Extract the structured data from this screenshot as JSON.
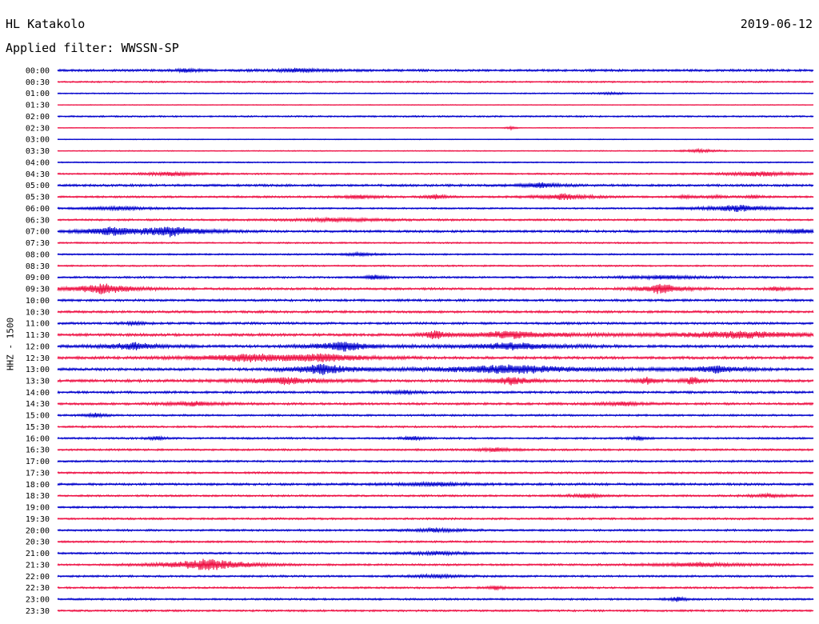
{
  "header": {
    "station": "HL Katakolo",
    "date": "2019-06-12",
    "filter": "Applied filter: WWSSN-SP"
  },
  "chart_data": {
    "type": "line",
    "title": "HL Katakolo",
    "subtitle": "Applied filter: WWSSN-SP",
    "ylabel": "HHZ - 1500",
    "xlabel": "",
    "colors": [
      "#0000cc",
      "#ee1144"
    ],
    "categories": [
      "00:00",
      "00:30",
      "01:00",
      "01:30",
      "02:00",
      "02:30",
      "03:00",
      "03:30",
      "04:00",
      "04:30",
      "05:00",
      "05:30",
      "06:00",
      "06:30",
      "07:00",
      "07:30",
      "08:00",
      "08:30",
      "09:00",
      "09:30",
      "10:00",
      "10:30",
      "11:00",
      "11:30",
      "12:00",
      "12:30",
      "13:00",
      "13:30",
      "14:00",
      "14:30",
      "15:00",
      "15:30",
      "16:00",
      "16:30",
      "17:00",
      "17:30",
      "18:00",
      "18:30",
      "19:00",
      "19:30",
      "20:00",
      "20:30",
      "21:00",
      "21:30",
      "22:00",
      "22:30",
      "23:00",
      "23:30"
    ],
    "noise": [
      3,
      2,
      1.5,
      1,
      2,
      1,
      1,
      1.2,
      1.5,
      2,
      3,
      2.5,
      2,
      2.5,
      3,
      2,
      2,
      2,
      2.5,
      3,
      3,
      3,
      3,
      3.5,
      3.5,
      3.5,
      3.5,
      3.5,
      3,
      3,
      2.5,
      2.5,
      2.5,
      2.5,
      2.5,
      2.5,
      3,
      2.5,
      2.5,
      2.5,
      2.5,
      2.5,
      2.5,
      2.5,
      2.5,
      2.5,
      2.5,
      2.5
    ],
    "events": [
      {
        "row": 0,
        "t": 0.17,
        "a": 6,
        "d": 0.01
      },
      {
        "row": 0,
        "t": 0.32,
        "a": 5,
        "d": 0.03
      },
      {
        "row": 2,
        "t": 0.73,
        "a": 3,
        "d": 0.02
      },
      {
        "row": 5,
        "t": 0.6,
        "a": 5,
        "d": 0.005
      },
      {
        "row": 7,
        "t": 0.85,
        "a": 5,
        "d": 0.02
      },
      {
        "row": 9,
        "t": 0.15,
        "a": 6,
        "d": 0.03
      },
      {
        "row": 9,
        "t": 0.93,
        "a": 7,
        "d": 0.04
      },
      {
        "row": 10,
        "t": 0.64,
        "a": 7,
        "d": 0.02
      },
      {
        "row": 11,
        "t": 0.4,
        "a": 5,
        "d": 0.02
      },
      {
        "row": 11,
        "t": 0.5,
        "a": 8,
        "d": 0.01
      },
      {
        "row": 11,
        "t": 0.67,
        "a": 8,
        "d": 0.03
      },
      {
        "row": 11,
        "t": 0.83,
        "a": 4,
        "d": 0.01
      },
      {
        "row": 11,
        "t": 0.87,
        "a": 4,
        "d": 0.01
      },
      {
        "row": 11,
        "t": 0.92,
        "a": 4,
        "d": 0.01
      },
      {
        "row": 12,
        "t": 0.08,
        "a": 5,
        "d": 0.04
      },
      {
        "row": 12,
        "t": 0.9,
        "a": 9,
        "d": 0.04
      },
      {
        "row": 13,
        "t": 0.37,
        "a": 5,
        "d": 0.05
      },
      {
        "row": 14,
        "t": 0.07,
        "a": 10,
        "d": 0.03
      },
      {
        "row": 14,
        "t": 0.15,
        "a": 14,
        "d": 0.04
      },
      {
        "row": 14,
        "t": 0.98,
        "a": 6,
        "d": 0.03
      },
      {
        "row": 16,
        "t": 0.4,
        "a": 4,
        "d": 0.02
      },
      {
        "row": 18,
        "t": 0.42,
        "a": 8,
        "d": 0.01
      },
      {
        "row": 18,
        "t": 0.8,
        "a": 5,
        "d": 0.04
      },
      {
        "row": 19,
        "t": 0.06,
        "a": 16,
        "d": 0.03
      },
      {
        "row": 19,
        "t": 0.8,
        "a": 16,
        "d": 0.02
      },
      {
        "row": 19,
        "t": 0.95,
        "a": 6,
        "d": 0.01
      },
      {
        "row": 22,
        "t": 0.1,
        "a": 5,
        "d": 0.01
      },
      {
        "row": 23,
        "t": 0.5,
        "a": 13,
        "d": 0.01
      },
      {
        "row": 23,
        "t": 0.6,
        "a": 10,
        "d": 0.05
      },
      {
        "row": 23,
        "t": 0.9,
        "a": 10,
        "d": 0.08
      },
      {
        "row": 24,
        "t": 0.1,
        "a": 10,
        "d": 0.03
      },
      {
        "row": 24,
        "t": 0.38,
        "a": 14,
        "d": 0.03
      },
      {
        "row": 24,
        "t": 0.6,
        "a": 10,
        "d": 0.05
      },
      {
        "row": 25,
        "t": 0.25,
        "a": 10,
        "d": 0.05
      },
      {
        "row": 25,
        "t": 0.35,
        "a": 10,
        "d": 0.05
      },
      {
        "row": 26,
        "t": 0.35,
        "a": 15,
        "d": 0.03
      },
      {
        "row": 26,
        "t": 0.6,
        "a": 13,
        "d": 0.08
      },
      {
        "row": 26,
        "t": 0.87,
        "a": 10,
        "d": 0.03
      },
      {
        "row": 27,
        "t": 0.3,
        "a": 10,
        "d": 0.04
      },
      {
        "row": 27,
        "t": 0.6,
        "a": 12,
        "d": 0.02
      },
      {
        "row": 27,
        "t": 0.78,
        "a": 10,
        "d": 0.01
      },
      {
        "row": 27,
        "t": 0.84,
        "a": 12,
        "d": 0.01
      },
      {
        "row": 28,
        "t": 0.46,
        "a": 4,
        "d": 0.02
      },
      {
        "row": 29,
        "t": 0.18,
        "a": 6,
        "d": 0.03
      },
      {
        "row": 29,
        "t": 0.75,
        "a": 6,
        "d": 0.02
      },
      {
        "row": 30,
        "t": 0.05,
        "a": 6,
        "d": 0.01
      },
      {
        "row": 32,
        "t": 0.13,
        "a": 5,
        "d": 0.01
      },
      {
        "row": 32,
        "t": 0.47,
        "a": 6,
        "d": 0.01
      },
      {
        "row": 32,
        "t": 0.77,
        "a": 5,
        "d": 0.01
      },
      {
        "row": 33,
        "t": 0.58,
        "a": 5,
        "d": 0.02
      },
      {
        "row": 36,
        "t": 0.5,
        "a": 5,
        "d": 0.04
      },
      {
        "row": 37,
        "t": 0.7,
        "a": 5,
        "d": 0.02
      },
      {
        "row": 37,
        "t": 0.94,
        "a": 5,
        "d": 0.02
      },
      {
        "row": 40,
        "t": 0.5,
        "a": 5,
        "d": 0.03
      },
      {
        "row": 42,
        "t": 0.5,
        "a": 5,
        "d": 0.03
      },
      {
        "row": 43,
        "t": 0.2,
        "a": 18,
        "d": 0.04
      },
      {
        "row": 43,
        "t": 0.85,
        "a": 6,
        "d": 0.05
      },
      {
        "row": 44,
        "t": 0.5,
        "a": 4,
        "d": 0.03
      },
      {
        "row": 45,
        "t": 0.58,
        "a": 6,
        "d": 0.01
      },
      {
        "row": 46,
        "t": 0.82,
        "a": 6,
        "d": 0.01
      }
    ]
  }
}
